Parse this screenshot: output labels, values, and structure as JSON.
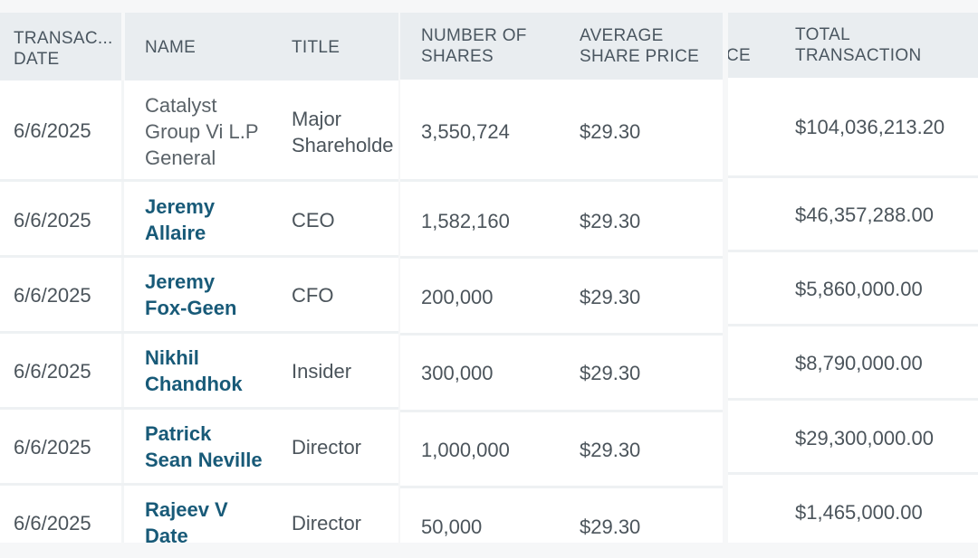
{
  "columns": {
    "date": "TRANSAC...\nDATE",
    "name": "NAME",
    "title": "TITLE",
    "shares": "NUMBER OF\nSHARES",
    "avg_price": "AVERAGE\nSHARE PRICE",
    "partial": "CE",
    "total": "TOTAL\nTRANSACTION"
  },
  "rows": [
    {
      "date": "6/6/2025",
      "name": "Catalyst\nGroup Vi L.P\nGeneral",
      "name_is_link": false,
      "title": "Major\nShareholde",
      "shares": "3,550,724",
      "price": "$29.30",
      "total": "$104,036,213.20"
    },
    {
      "date": "6/6/2025",
      "name": "Jeremy\nAllaire",
      "name_is_link": true,
      "title": "CEO",
      "shares": "1,582,160",
      "price": "$29.30",
      "total": "$46,357,288.00"
    },
    {
      "date": "6/6/2025",
      "name": "Jeremy\nFox-Geen",
      "name_is_link": true,
      "title": "CFO",
      "shares": "200,000",
      "price": "$29.30",
      "total": "$5,860,000.00"
    },
    {
      "date": "6/6/2025",
      "name": "Nikhil\nChandhok",
      "name_is_link": true,
      "title": "Insider",
      "shares": "300,000",
      "price": "$29.30",
      "total": "$8,790,000.00"
    },
    {
      "date": "6/6/2025",
      "name": "Patrick\nSean Neville",
      "name_is_link": true,
      "title": "Director",
      "shares": "1,000,000",
      "price": "$29.30",
      "total": "$29,300,000.00"
    },
    {
      "date": "6/6/2025",
      "name": "Rajeev V\nDate",
      "name_is_link": true,
      "title": "Director",
      "shares": "50,000",
      "price": "$29.30",
      "total": "$1,465,000.00"
    }
  ]
}
